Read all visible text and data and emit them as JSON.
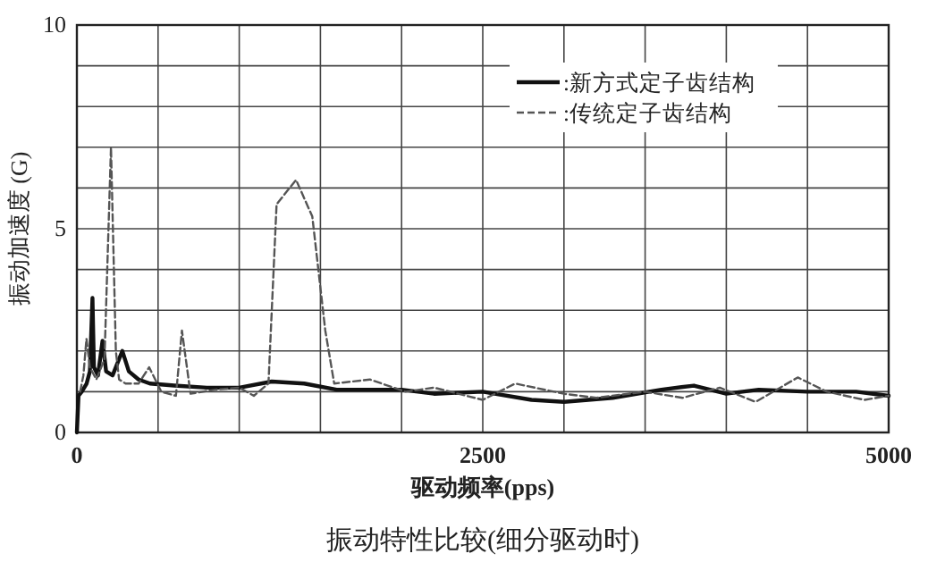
{
  "chart_data": {
    "type": "line",
    "title": "振动特性比较(细分驱动时)",
    "xlabel": "驱动频率(pps)",
    "ylabel": "振动加速度 (G)",
    "xlim": [
      0,
      5000
    ],
    "ylim": [
      0,
      10
    ],
    "xticks": [
      0,
      {
        "value": 500,
        "label": null
      },
      {
        "value": 1000,
        "label": null
      },
      {
        "value": 1500,
        "label": null
      },
      {
        "value": 2000,
        "label": null
      },
      2500,
      {
        "value": 3000,
        "label": null
      },
      {
        "value": 3500,
        "label": null
      },
      {
        "value": 4000,
        "label": null
      },
      {
        "value": 4500,
        "label": null
      },
      5000
    ],
    "yticks": [
      0,
      {
        "value": 1,
        "label": null
      },
      {
        "value": 2,
        "label": null
      },
      {
        "value": 3,
        "label": null
      },
      {
        "value": 4,
        "label": null
      },
      5,
      {
        "value": 6,
        "label": null
      },
      {
        "value": 7,
        "label": null
      },
      {
        "value": 8,
        "label": null
      },
      {
        "value": 9,
        "label": null
      },
      10
    ],
    "grid": true,
    "legend": "top right",
    "marker": "none",
    "series": [
      {
        "name": ":新方式定子齿结构",
        "color": "#111111",
        "line_style": "solid",
        "x": [
          0,
          10,
          30,
          60,
          80,
          96,
          105,
          130,
          158,
          180,
          220,
          280,
          320,
          380,
          450,
          600,
          800,
          1000,
          1200,
          1400,
          1600,
          2000,
          2200,
          2500,
          2800,
          3000,
          3300,
          3600,
          3800,
          4000,
          4200,
          4500,
          4800,
          5000
        ],
        "values": [
          0,
          0.9,
          1.0,
          1.2,
          1.5,
          3.3,
          1.6,
          1.4,
          2.25,
          1.5,
          1.4,
          2.0,
          1.5,
          1.3,
          1.2,
          1.15,
          1.1,
          1.1,
          1.25,
          1.2,
          1.05,
          1.05,
          0.95,
          1.0,
          0.8,
          0.75,
          0.85,
          1.05,
          1.15,
          0.95,
          1.05,
          1.0,
          1.0,
          0.9
        ]
      },
      {
        "name": ":传统定子齿结构",
        "color": "#555555",
        "line_style": "dashed",
        "x": [
          20,
          40,
          59,
          80,
          120,
          170,
          210,
          240,
          260,
          300,
          380,
          445,
          520,
          610,
          647,
          700,
          850,
          1000,
          1090,
          1180,
          1230,
          1350,
          1450,
          1530,
          1585,
          1805,
          2025,
          2200,
          2500,
          2700,
          3000,
          3200,
          3500,
          3730,
          3960,
          4180,
          4440,
          4620,
          4850,
          5000
        ],
        "values": [
          1.0,
          1.4,
          2.3,
          1.6,
          1.3,
          1.8,
          7.0,
          2.0,
          1.3,
          1.2,
          1.2,
          1.6,
          1.0,
          0.9,
          2.5,
          0.95,
          1.05,
          1.1,
          0.9,
          1.2,
          5.6,
          6.2,
          5.3,
          2.5,
          1.2,
          1.3,
          1.0,
          1.1,
          0.8,
          1.2,
          0.95,
          0.85,
          1.0,
          0.85,
          1.1,
          0.75,
          1.35,
          1.0,
          0.8,
          0.9
        ]
      }
    ]
  }
}
